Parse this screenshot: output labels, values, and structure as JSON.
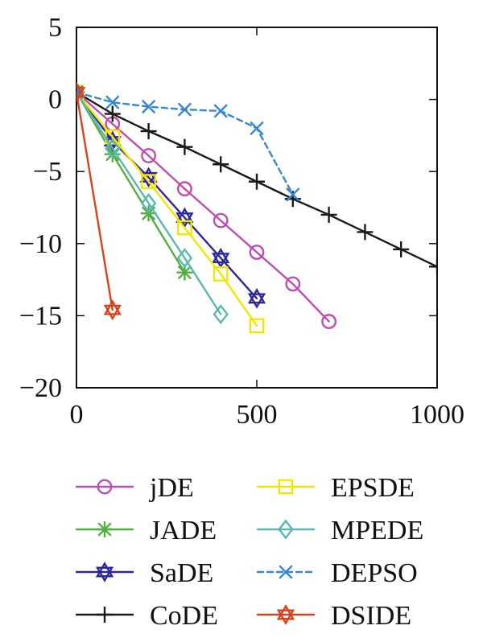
{
  "chart_data": {
    "type": "line",
    "title": "",
    "xlabel": "",
    "ylabel": "",
    "xlim": [
      0,
      1000
    ],
    "ylim": [
      -20,
      5
    ],
    "xticks": [
      0,
      500,
      1000
    ],
    "yticks": [
      5,
      0,
      -5,
      -10,
      -15,
      -20
    ],
    "grid": false,
    "legend_position": "bottom",
    "series": [
      {
        "name": "jDE",
        "color": "#c04bb5",
        "line_style": "solid",
        "marker": "circle",
        "x": [
          0,
          100,
          200,
          300,
          400,
          500,
          600,
          700
        ],
        "y": [
          0.5,
          -1.7,
          -3.9,
          -6.2,
          -8.4,
          -10.6,
          -12.8,
          -15.4
        ]
      },
      {
        "name": "JADE",
        "color": "#52b043",
        "line_style": "solid",
        "marker": "asterisk",
        "x": [
          0,
          100,
          200,
          300
        ],
        "y": [
          0.5,
          -3.8,
          -7.9,
          -12.0
        ]
      },
      {
        "name": "SaDE",
        "color": "#2f2799",
        "line_style": "solid",
        "marker": "hexagram",
        "x": [
          0,
          100,
          200,
          300,
          400,
          500
        ],
        "y": [
          0.5,
          -2.9,
          -5.4,
          -8.2,
          -11.0,
          -13.8
        ]
      },
      {
        "name": "CoDE",
        "color": "#1a1a1a",
        "line_style": "solid",
        "marker": "plus",
        "x": [
          0,
          100,
          200,
          300,
          400,
          500,
          600,
          700,
          800,
          900,
          1000
        ],
        "y": [
          0.5,
          -1.0,
          -2.2,
          -3.3,
          -4.5,
          -5.7,
          -6.9,
          -8.0,
          -9.2,
          -10.4,
          -11.6
        ]
      },
      {
        "name": "EPSDE",
        "color": "#f2e600",
        "line_style": "solid",
        "marker": "square",
        "x": [
          0,
          100,
          200,
          300,
          400,
          500
        ],
        "y": [
          0.5,
          -2.6,
          -5.7,
          -8.9,
          -12.1,
          -15.7
        ]
      },
      {
        "name": "MPEDE",
        "color": "#5ab8b3",
        "line_style": "solid",
        "marker": "diamond",
        "x": [
          0,
          100,
          200,
          300,
          400
        ],
        "y": [
          0.5,
          -3.4,
          -7.2,
          -11.0,
          -14.9
        ]
      },
      {
        "name": "DEPSO",
        "color": "#3587d1",
        "line_style": "dashed",
        "marker": "x",
        "x": [
          0,
          100,
          200,
          300,
          400,
          500,
          600
        ],
        "y": [
          0.5,
          -0.2,
          -0.5,
          -0.7,
          -0.8,
          -2.0,
          -6.6
        ]
      },
      {
        "name": "DSIDE",
        "color": "#d7431c",
        "line_style": "solid",
        "marker": "hexagram",
        "x": [
          0,
          100
        ],
        "y": [
          0.5,
          -14.6
        ]
      }
    ]
  }
}
